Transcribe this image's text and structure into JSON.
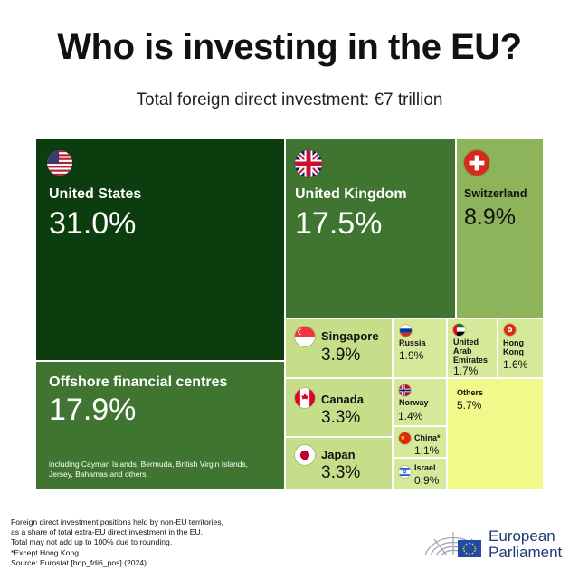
{
  "title": "Who is investing in the EU?",
  "subtitle": "Total foreign direct investment: €7 trillion",
  "colors": {
    "darkest": "#0c3d0e",
    "dark": "#3f7530",
    "medium": "#689a45",
    "light": "#8db45a",
    "lighter": "#c6dd8a",
    "lightest": "#d6e89a",
    "others": "#f3f88a"
  },
  "chart_data": {
    "type": "treemap",
    "unit": "%",
    "items": [
      {
        "label": "United States",
        "value": 31.0,
        "display": "31.0%",
        "flag": "us-flag-icon"
      },
      {
        "label": "Offshore financial centres",
        "value": 17.9,
        "display": "17.9%",
        "note": "including Cayman Islands, Bermuda, British Virgin Islands, Jersey, Bahamas and others."
      },
      {
        "label": "United Kingdom",
        "value": 17.5,
        "display": "17.5%",
        "flag": "uk-flag-icon"
      },
      {
        "label": "Switzerland",
        "value": 8.9,
        "display": "8.9%",
        "flag": "swiss-flag-icon"
      },
      {
        "label": "Singapore",
        "value": 3.9,
        "display": "3.9%",
        "flag": "singapore-flag-icon"
      },
      {
        "label": "Canada",
        "value": 3.3,
        "display": "3.3%",
        "flag": "canada-flag-icon"
      },
      {
        "label": "Japan",
        "value": 3.3,
        "display": "3.3%",
        "flag": "japan-flag-icon"
      },
      {
        "label": "Russia",
        "value": 1.9,
        "display": "1.9%",
        "flag": "russia-flag-icon"
      },
      {
        "label": "United Arab Emirates",
        "value": 1.7,
        "display": "1.7%",
        "flag": "uae-flag-icon"
      },
      {
        "label": "Hong Kong",
        "value": 1.6,
        "display": "1.6%",
        "flag": "hong-kong-flag-icon"
      },
      {
        "label": "Norway",
        "value": 1.4,
        "display": "1.4%",
        "flag": "norway-flag-icon"
      },
      {
        "label": "China*",
        "value": 1.1,
        "display": "1.1%",
        "flag": "china-flag-icon"
      },
      {
        "label": "Israel",
        "value": 0.9,
        "display": "0.9%",
        "flag": "israel-flag-icon"
      },
      {
        "label": "Others",
        "value": 5.7,
        "display": "5.7%"
      }
    ]
  },
  "footnotes": [
    "Foreign direct investment positions held by non-EU territories,",
    "as a share of total extra-EU direct investment in the EU.",
    "Total may not add up to 100% due to rounding.",
    "*Except Hong Kong.",
    "Source: Eurostat [bop_fdi6_pos] (2024)."
  ],
  "logo": {
    "line1": "European",
    "line2": "Parliament"
  }
}
